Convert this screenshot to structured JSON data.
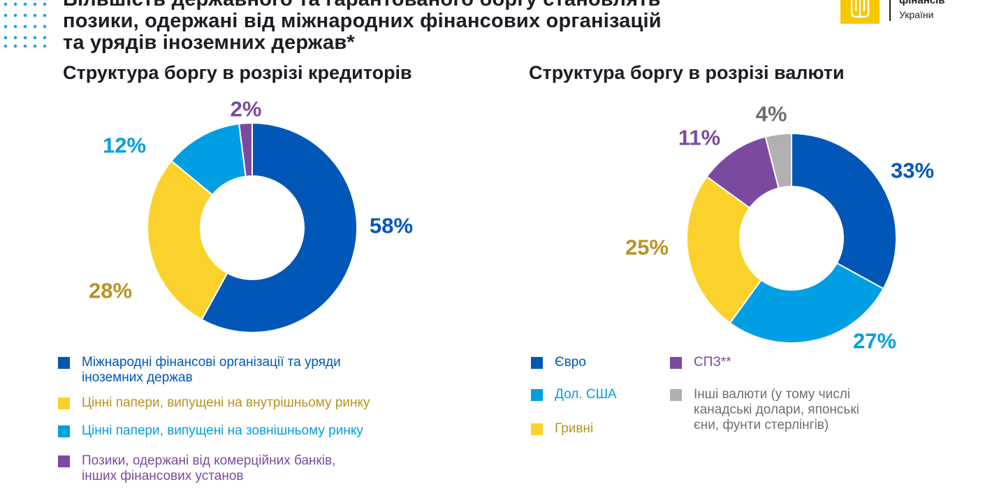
{
  "header": {
    "headline_lines": [
      "Більшість державного та гарантованого боргу становлять",
      "позики, одержані від міжнародних фінансових організацій",
      "та урядів іноземних держав*"
    ],
    "logo_line1": "фінансів",
    "logo_line2": "України"
  },
  "colors": {
    "blue_dark": "#0057b8",
    "yellow": "#fbd22c",
    "blue_light": "#009fe3",
    "purple": "#7b4aa0",
    "gray": "#b1b1b1",
    "label_gold": "#b89323"
  },
  "chart_data": [
    {
      "type": "pie",
      "title": "Структура боргу в розрізі кредиторів",
      "donut": true,
      "slices": [
        {
          "label": "Міжнародні фінансові організації та уряди іноземних держав",
          "value": 58,
          "value_label": "58%",
          "color": "#0057b8",
          "label_color": "#0057b8"
        },
        {
          "label": "Цінні папери, випущені на внутрішньому ринку",
          "value": 28,
          "value_label": "28%",
          "color": "#fbd22c",
          "label_color": "#b89323"
        },
        {
          "label": "Цінні папери, випущені на зовнішньому ринку",
          "value": 12,
          "value_label": "12%",
          "color": "#009fe3",
          "label_color": "#009fe3"
        },
        {
          "label": "Позики, одержані від комерційних банків, інших фінансових установ",
          "value": 2,
          "value_label": "2%",
          "color": "#7b4aa0",
          "label_color": "#7b4aa0"
        }
      ],
      "legend": [
        {
          "lines": [
            "Міжнародні фінансові організації та уряди",
            "іноземних держав"
          ],
          "color": "#0057b8",
          "text_color": "#0057b8"
        },
        {
          "lines": [
            "Цінні папери, випущені на внутрішньому ринку"
          ],
          "color": "#fbd22c",
          "text_color": "#b89323"
        },
        {
          "lines": [
            "Цінні папери, випущені на зовнішньому ринку"
          ],
          "color": "#009fe3",
          "text_color": "#009fe3"
        },
        {
          "lines": [
            "Позики, одержані від комерційних банків,",
            "інших фінансових установ"
          ],
          "color": "#7b4aa0",
          "text_color": "#7b4aa0"
        }
      ]
    },
    {
      "type": "pie",
      "title": "Структура боргу в розрізі валюти",
      "donut": true,
      "slices": [
        {
          "label": "Євро",
          "value": 33,
          "value_label": "33%",
          "color": "#0057b8",
          "label_color": "#0057b8"
        },
        {
          "label": "Дол. США",
          "value": 27,
          "value_label": "27%",
          "color": "#009fe3",
          "label_color": "#009fe3"
        },
        {
          "label": "Гривні",
          "value": 25,
          "value_label": "25%",
          "color": "#fbd22c",
          "label_color": "#b89323"
        },
        {
          "label": "СПЗ**",
          "value": 11,
          "value_label": "11%",
          "color": "#7b4aa0",
          "label_color": "#7b4aa0"
        },
        {
          "label": "Інші валюти (у тому числі канадські долари, японські єни, фунти стерлінгів)",
          "value": 4,
          "value_label": "4%",
          "color": "#b1b1b1",
          "label_color": "#6f6f6f"
        }
      ],
      "legend": [
        {
          "lines": [
            "Євро"
          ],
          "color": "#0057b8",
          "text_color": "#0057b8"
        },
        {
          "lines": [
            "Дол. США"
          ],
          "color": "#009fe3",
          "text_color": "#009fe3"
        },
        {
          "lines": [
            "Гривні"
          ],
          "color": "#fbd22c",
          "text_color": "#b89323"
        },
        {
          "lines": [
            "СПЗ**"
          ],
          "color": "#7b4aa0",
          "text_color": "#7b4aa0"
        },
        {
          "lines": [
            "Інші валюти (у тому числі",
            "канадські долари, японські",
            "єни, фунти стерлінгів)"
          ],
          "color": "#b1b1b1",
          "text_color": "#6f6f6f"
        }
      ]
    }
  ]
}
